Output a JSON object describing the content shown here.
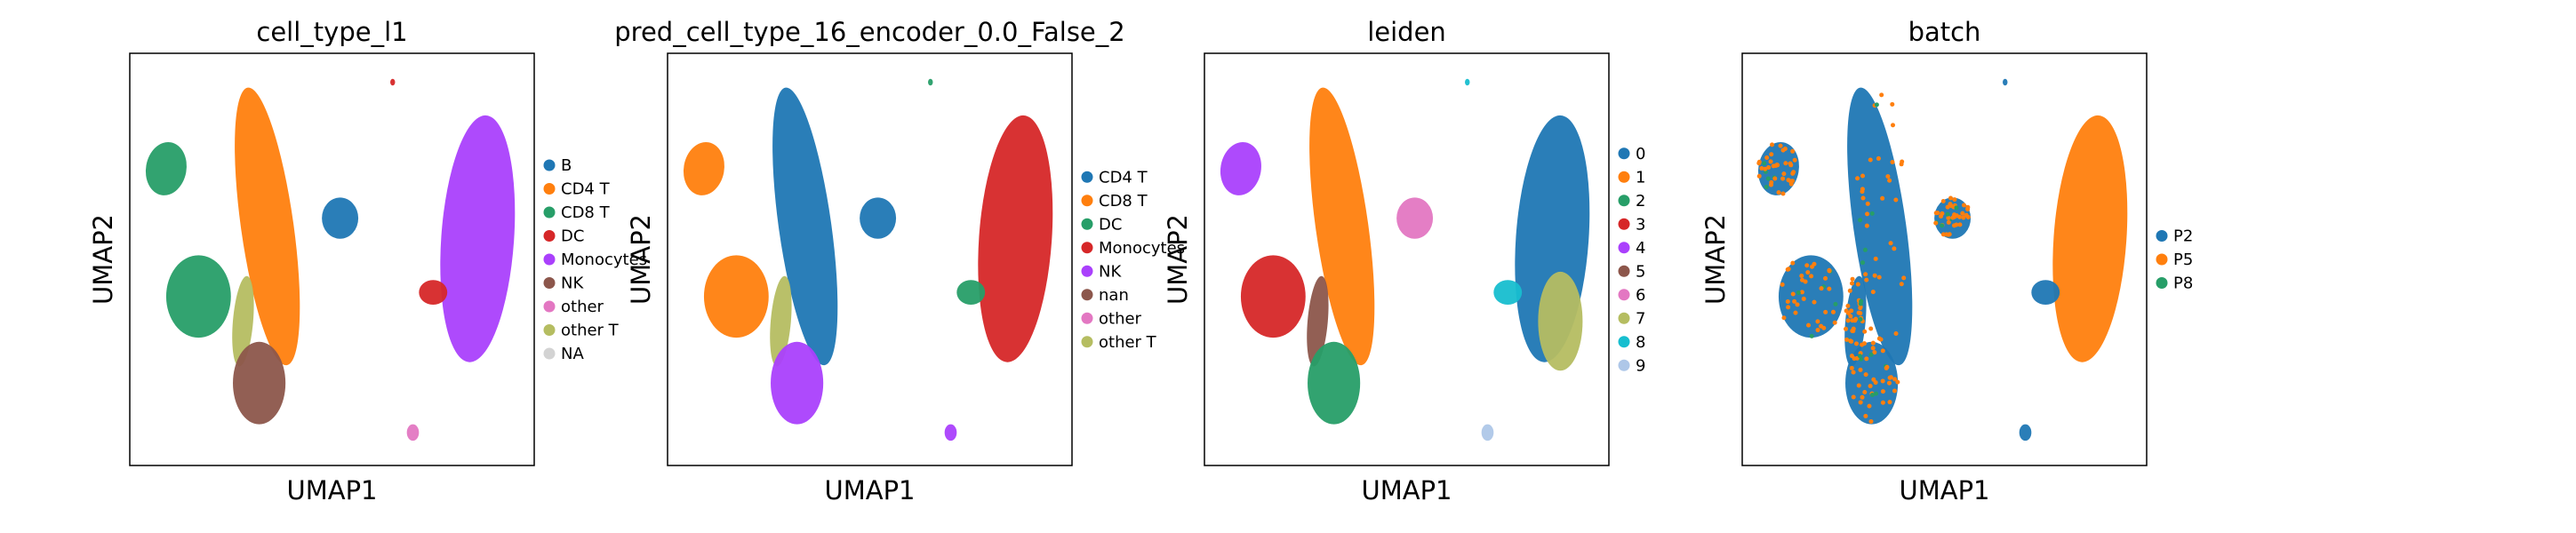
{
  "chart_data": [
    {
      "type": "scatter",
      "title": "cell_type_l1",
      "xlabel": "UMAP1",
      "ylabel": "UMAP2",
      "legend": {
        "placement": "right",
        "entries": [
          {
            "label": "B",
            "color": "#1f77b4"
          },
          {
            "label": "CD4 T",
            "color": "#ff7f0e"
          },
          {
            "label": "CD8 T",
            "color": "#279e68"
          },
          {
            "label": "DC",
            "color": "#d62728"
          },
          {
            "label": "Monocytes",
            "color": "#aa40fc"
          },
          {
            "label": "NK",
            "color": "#8c564b"
          },
          {
            "label": "other",
            "color": "#e377c2"
          },
          {
            "label": "other T",
            "color": "#b5bd61"
          },
          {
            "label": "NA",
            "color": "#d3d3d3"
          }
        ]
      },
      "clusters": [
        {
          "label": "CD4 T",
          "x": 0.34,
          "y": 0.58
        },
        {
          "label": "B",
          "x": 0.52,
          "y": 0.6
        },
        {
          "label": "CD8 T",
          "x": 0.09,
          "y": 0.72
        },
        {
          "label": "CD8 T",
          "x": 0.17,
          "y": 0.41
        },
        {
          "label": "other T",
          "x": 0.28,
          "y": 0.35
        },
        {
          "label": "NK",
          "x": 0.32,
          "y": 0.2
        },
        {
          "label": "Monocytes",
          "x": 0.86,
          "y": 0.55
        },
        {
          "label": "DC",
          "x": 0.75,
          "y": 0.42
        },
        {
          "label": "other",
          "x": 0.7,
          "y": 0.08
        },
        {
          "label": "DC",
          "x": 0.65,
          "y": 0.93
        }
      ]
    },
    {
      "type": "scatter",
      "title": "pred_cell_type_16_encoder_0.0_False_2",
      "xlabel": "UMAP1",
      "ylabel": "UMAP2",
      "legend": {
        "placement": "right",
        "entries": [
          {
            "label": "CD4 T",
            "color": "#1f77b4"
          },
          {
            "label": "CD8 T",
            "color": "#ff7f0e"
          },
          {
            "label": "DC",
            "color": "#279e68"
          },
          {
            "label": "Monocytes",
            "color": "#d62728"
          },
          {
            "label": "NK",
            "color": "#aa40fc"
          },
          {
            "label": "nan",
            "color": "#8c564b"
          },
          {
            "label": "other",
            "color": "#e377c2"
          },
          {
            "label": "other T",
            "color": "#b5bd61"
          }
        ]
      },
      "clusters": [
        {
          "label": "CD4 T",
          "x": 0.34,
          "y": 0.58
        },
        {
          "label": "CD4 T",
          "x": 0.52,
          "y": 0.6
        },
        {
          "label": "CD8 T",
          "x": 0.09,
          "y": 0.72
        },
        {
          "label": "CD8 T",
          "x": 0.17,
          "y": 0.41
        },
        {
          "label": "other T",
          "x": 0.28,
          "y": 0.35
        },
        {
          "label": "NK",
          "x": 0.32,
          "y": 0.2
        },
        {
          "label": "Monocytes",
          "x": 0.86,
          "y": 0.55
        },
        {
          "label": "DC",
          "x": 0.75,
          "y": 0.42
        },
        {
          "label": "NK",
          "x": 0.7,
          "y": 0.08
        },
        {
          "label": "DC",
          "x": 0.65,
          "y": 0.93
        }
      ]
    },
    {
      "type": "scatter",
      "title": "leiden",
      "xlabel": "UMAP1",
      "ylabel": "UMAP2",
      "legend": {
        "placement": "right",
        "entries": [
          {
            "label": "0",
            "color": "#1f77b4"
          },
          {
            "label": "1",
            "color": "#ff7f0e"
          },
          {
            "label": "2",
            "color": "#279e68"
          },
          {
            "label": "3",
            "color": "#d62728"
          },
          {
            "label": "4",
            "color": "#aa40fc"
          },
          {
            "label": "5",
            "color": "#8c564b"
          },
          {
            "label": "6",
            "color": "#e377c2"
          },
          {
            "label": "7",
            "color": "#b5bd61"
          },
          {
            "label": "8",
            "color": "#17becf"
          },
          {
            "label": "9",
            "color": "#aec7e8"
          }
        ]
      },
      "clusters": [
        {
          "label": "1",
          "x": 0.34,
          "y": 0.58
        },
        {
          "label": "6",
          "x": 0.52,
          "y": 0.6
        },
        {
          "label": "4",
          "x": 0.09,
          "y": 0.72
        },
        {
          "label": "3",
          "x": 0.17,
          "y": 0.41
        },
        {
          "label": "5",
          "x": 0.28,
          "y": 0.35
        },
        {
          "label": "2",
          "x": 0.32,
          "y": 0.2
        },
        {
          "label": "0",
          "x": 0.86,
          "y": 0.55
        },
        {
          "label": "7",
          "x": 0.88,
          "y": 0.35
        },
        {
          "label": "8",
          "x": 0.75,
          "y": 0.42
        },
        {
          "label": "9",
          "x": 0.7,
          "y": 0.08
        },
        {
          "label": "8",
          "x": 0.65,
          "y": 0.93
        }
      ]
    },
    {
      "type": "scatter",
      "title": "batch",
      "xlabel": "UMAP1",
      "ylabel": "UMAP2",
      "legend": {
        "placement": "right",
        "entries": [
          {
            "label": "P2",
            "color": "#1f77b4"
          },
          {
            "label": "P5",
            "color": "#ff7f0e"
          },
          {
            "label": "P8",
            "color": "#279e68"
          }
        ]
      },
      "clusters": [
        {
          "label": "P2",
          "x": 0.34,
          "y": 0.58
        },
        {
          "label": "P2",
          "x": 0.52,
          "y": 0.6
        },
        {
          "label": "P2",
          "x": 0.09,
          "y": 0.72
        },
        {
          "label": "P2",
          "x": 0.17,
          "y": 0.41
        },
        {
          "label": "P2",
          "x": 0.28,
          "y": 0.35
        },
        {
          "label": "P2",
          "x": 0.32,
          "y": 0.2
        },
        {
          "label": "P5",
          "x": 0.86,
          "y": 0.55
        },
        {
          "label": "P2",
          "x": 0.75,
          "y": 0.42
        },
        {
          "label": "P2",
          "x": 0.7,
          "y": 0.08
        },
        {
          "label": "P2",
          "x": 0.65,
          "y": 0.93
        }
      ]
    }
  ]
}
